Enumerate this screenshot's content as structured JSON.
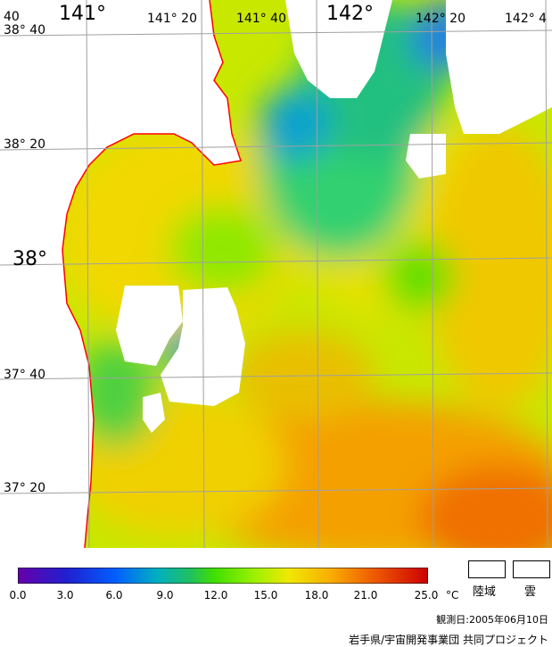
{
  "colors": {
    "coast": "#ff0000",
    "grid": "#a0a0a0",
    "land": "#ffffff",
    "cloud": "#ffffff",
    "colorbar_stops": [
      "#6600aa",
      "#2020d0",
      "#0060ff",
      "#00b0c0",
      "#20c060",
      "#40e000",
      "#a0f000",
      "#f0e800",
      "#f8b000",
      "#f06000",
      "#cc0000"
    ]
  },
  "map": {
    "lon_labels": [
      "40",
      "141°",
      "141° 20",
      "141° 40",
      "142°",
      "142° 20",
      "142° 4"
    ],
    "lat_labels": [
      "38° 40",
      "38° 20",
      "38°",
      "37° 40",
      "37° 20"
    ]
  },
  "legend": {
    "ticks": [
      "0.0",
      "3.0",
      "6.0",
      "9.0",
      "12.0",
      "15.0",
      "18.0",
      "21.0",
      "25.0"
    ],
    "unit": "°C",
    "land_label": "陸域",
    "cloud_label": "雲"
  },
  "footer": {
    "date": "観測日:2005年06月10日",
    "credit": "岩手県/宇宙開発事業団 共同プロジェクト"
  }
}
